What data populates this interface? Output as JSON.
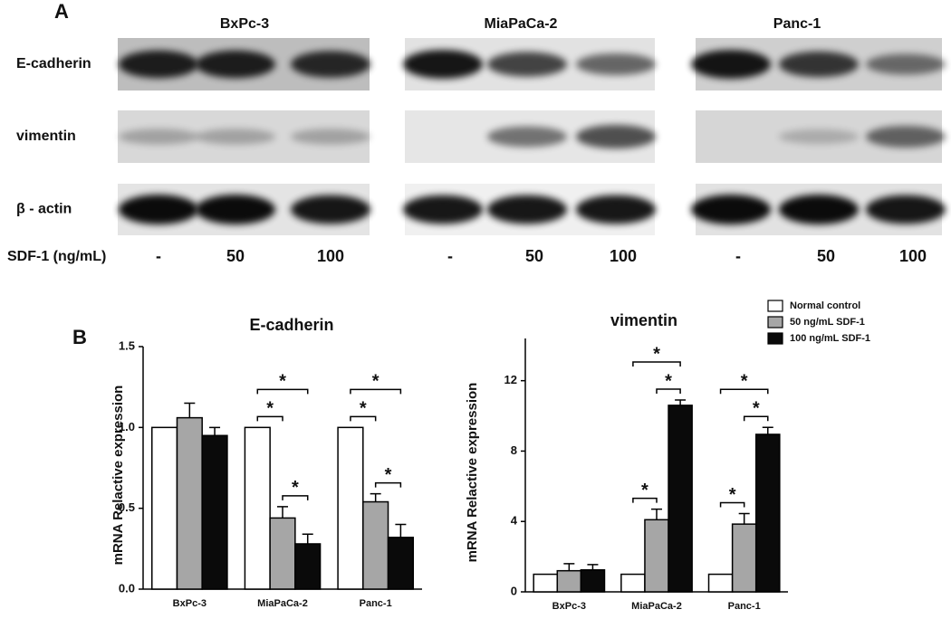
{
  "panel_a": {
    "label": "A",
    "cell_lines": [
      "BxPc-3",
      "MiaPaCa-2",
      "Panc-1"
    ],
    "proteins": [
      "E-cadherin",
      "vimentin",
      "β - actin"
    ],
    "treatment_label": "SDF-1 (ng/mL)",
    "lanes": [
      "-",
      "50",
      "100"
    ]
  },
  "panel_b_label": "B",
  "chart_data": [
    {
      "type": "bar",
      "title": "E-cadherin",
      "y_label": "mRNA Relactive expression",
      "categories": [
        "BxPc-3",
        "MiaPaCa-2",
        "Panc-1"
      ],
      "series": [
        {
          "name": "Normal control",
          "color": "#ffffff",
          "values": [
            1.0,
            1.0,
            1.0
          ],
          "errors": [
            0,
            0,
            0
          ]
        },
        {
          "name": "50 ng/mL SDF-1",
          "color": "#a6a6a6",
          "values": [
            1.06,
            0.44,
            0.54
          ],
          "errors": [
            0.09,
            0.07,
            0.05
          ]
        },
        {
          "name": "100 ng/mL SDF-1",
          "color": "#0a0a0a",
          "values": [
            0.95,
            0.28,
            0.32
          ],
          "errors": [
            0.05,
            0.06,
            0.08
          ]
        }
      ],
      "ylim": [
        0,
        1.5
      ],
      "yticks": [
        {
          "value": 0,
          "label": "0.0"
        },
        0.5,
        {
          "value": 1,
          "label": "1.0"
        },
        1.5
      ],
      "legend": false,
      "significance": [
        {
          "group": "MiaPaCa-2",
          "between": [
            "Normal control",
            "50 ng/mL SDF-1"
          ],
          "label": "*"
        },
        {
          "group": "MiaPaCa-2",
          "between": [
            "50 ng/mL SDF-1",
            "100 ng/mL SDF-1"
          ],
          "label": "*"
        },
        {
          "group": "MiaPaCa-2",
          "between": [
            "Normal control",
            "100 ng/mL SDF-1"
          ],
          "label": "*"
        },
        {
          "group": "Panc-1",
          "between": [
            "Normal control",
            "50 ng/mL SDF-1"
          ],
          "label": "*"
        },
        {
          "group": "Panc-1",
          "between": [
            "50 ng/mL SDF-1",
            "100 ng/mL SDF-1"
          ],
          "label": "*"
        },
        {
          "group": "Panc-1",
          "between": [
            "Normal control",
            "100 ng/mL SDF-1"
          ],
          "label": "*"
        }
      ]
    },
    {
      "type": "bar",
      "title": "vimentin",
      "y_label": "mRNA Relactive expression",
      "categories": [
        "BxPc-3",
        "MiaPaCa-2",
        "Panc-1"
      ],
      "series": [
        {
          "name": "Normal control",
          "color": "#ffffff",
          "values": [
            1.0,
            1.0,
            1.0
          ],
          "errors": [
            0,
            0,
            0
          ]
        },
        {
          "name": "50 ng/mL SDF-1",
          "color": "#a6a6a6",
          "values": [
            1.2,
            4.1,
            3.85
          ],
          "errors": [
            0.4,
            0.6,
            0.6
          ]
        },
        {
          "name": "100 ng/mL SDF-1",
          "color": "#0a0a0a",
          "values": [
            1.25,
            10.6,
            8.95
          ],
          "errors": [
            0.3,
            0.3,
            0.4
          ]
        }
      ],
      "ylim": [
        0,
        14.4
      ],
      "yticks": [
        0,
        4,
        8,
        12
      ],
      "legend": "top-right",
      "significance": [
        {
          "group": "MiaPaCa-2",
          "between": [
            "Normal control",
            "50 ng/mL SDF-1"
          ],
          "label": "*"
        },
        {
          "group": "MiaPaCa-2",
          "between": [
            "50 ng/mL SDF-1",
            "100 ng/mL SDF-1"
          ],
          "label": "*"
        },
        {
          "group": "MiaPaCa-2",
          "between": [
            "Normal control",
            "100 ng/mL SDF-1"
          ],
          "label": "*"
        },
        {
          "group": "Panc-1",
          "between": [
            "Normal control",
            "50 ng/mL SDF-1"
          ],
          "label": "*"
        },
        {
          "group": "Panc-1",
          "between": [
            "50 ng/mL SDF-1",
            "100 ng/mL SDF-1"
          ],
          "label": "*"
        },
        {
          "group": "Panc-1",
          "between": [
            "Normal control",
            "100 ng/mL SDF-1"
          ],
          "label": "*"
        }
      ]
    }
  ]
}
